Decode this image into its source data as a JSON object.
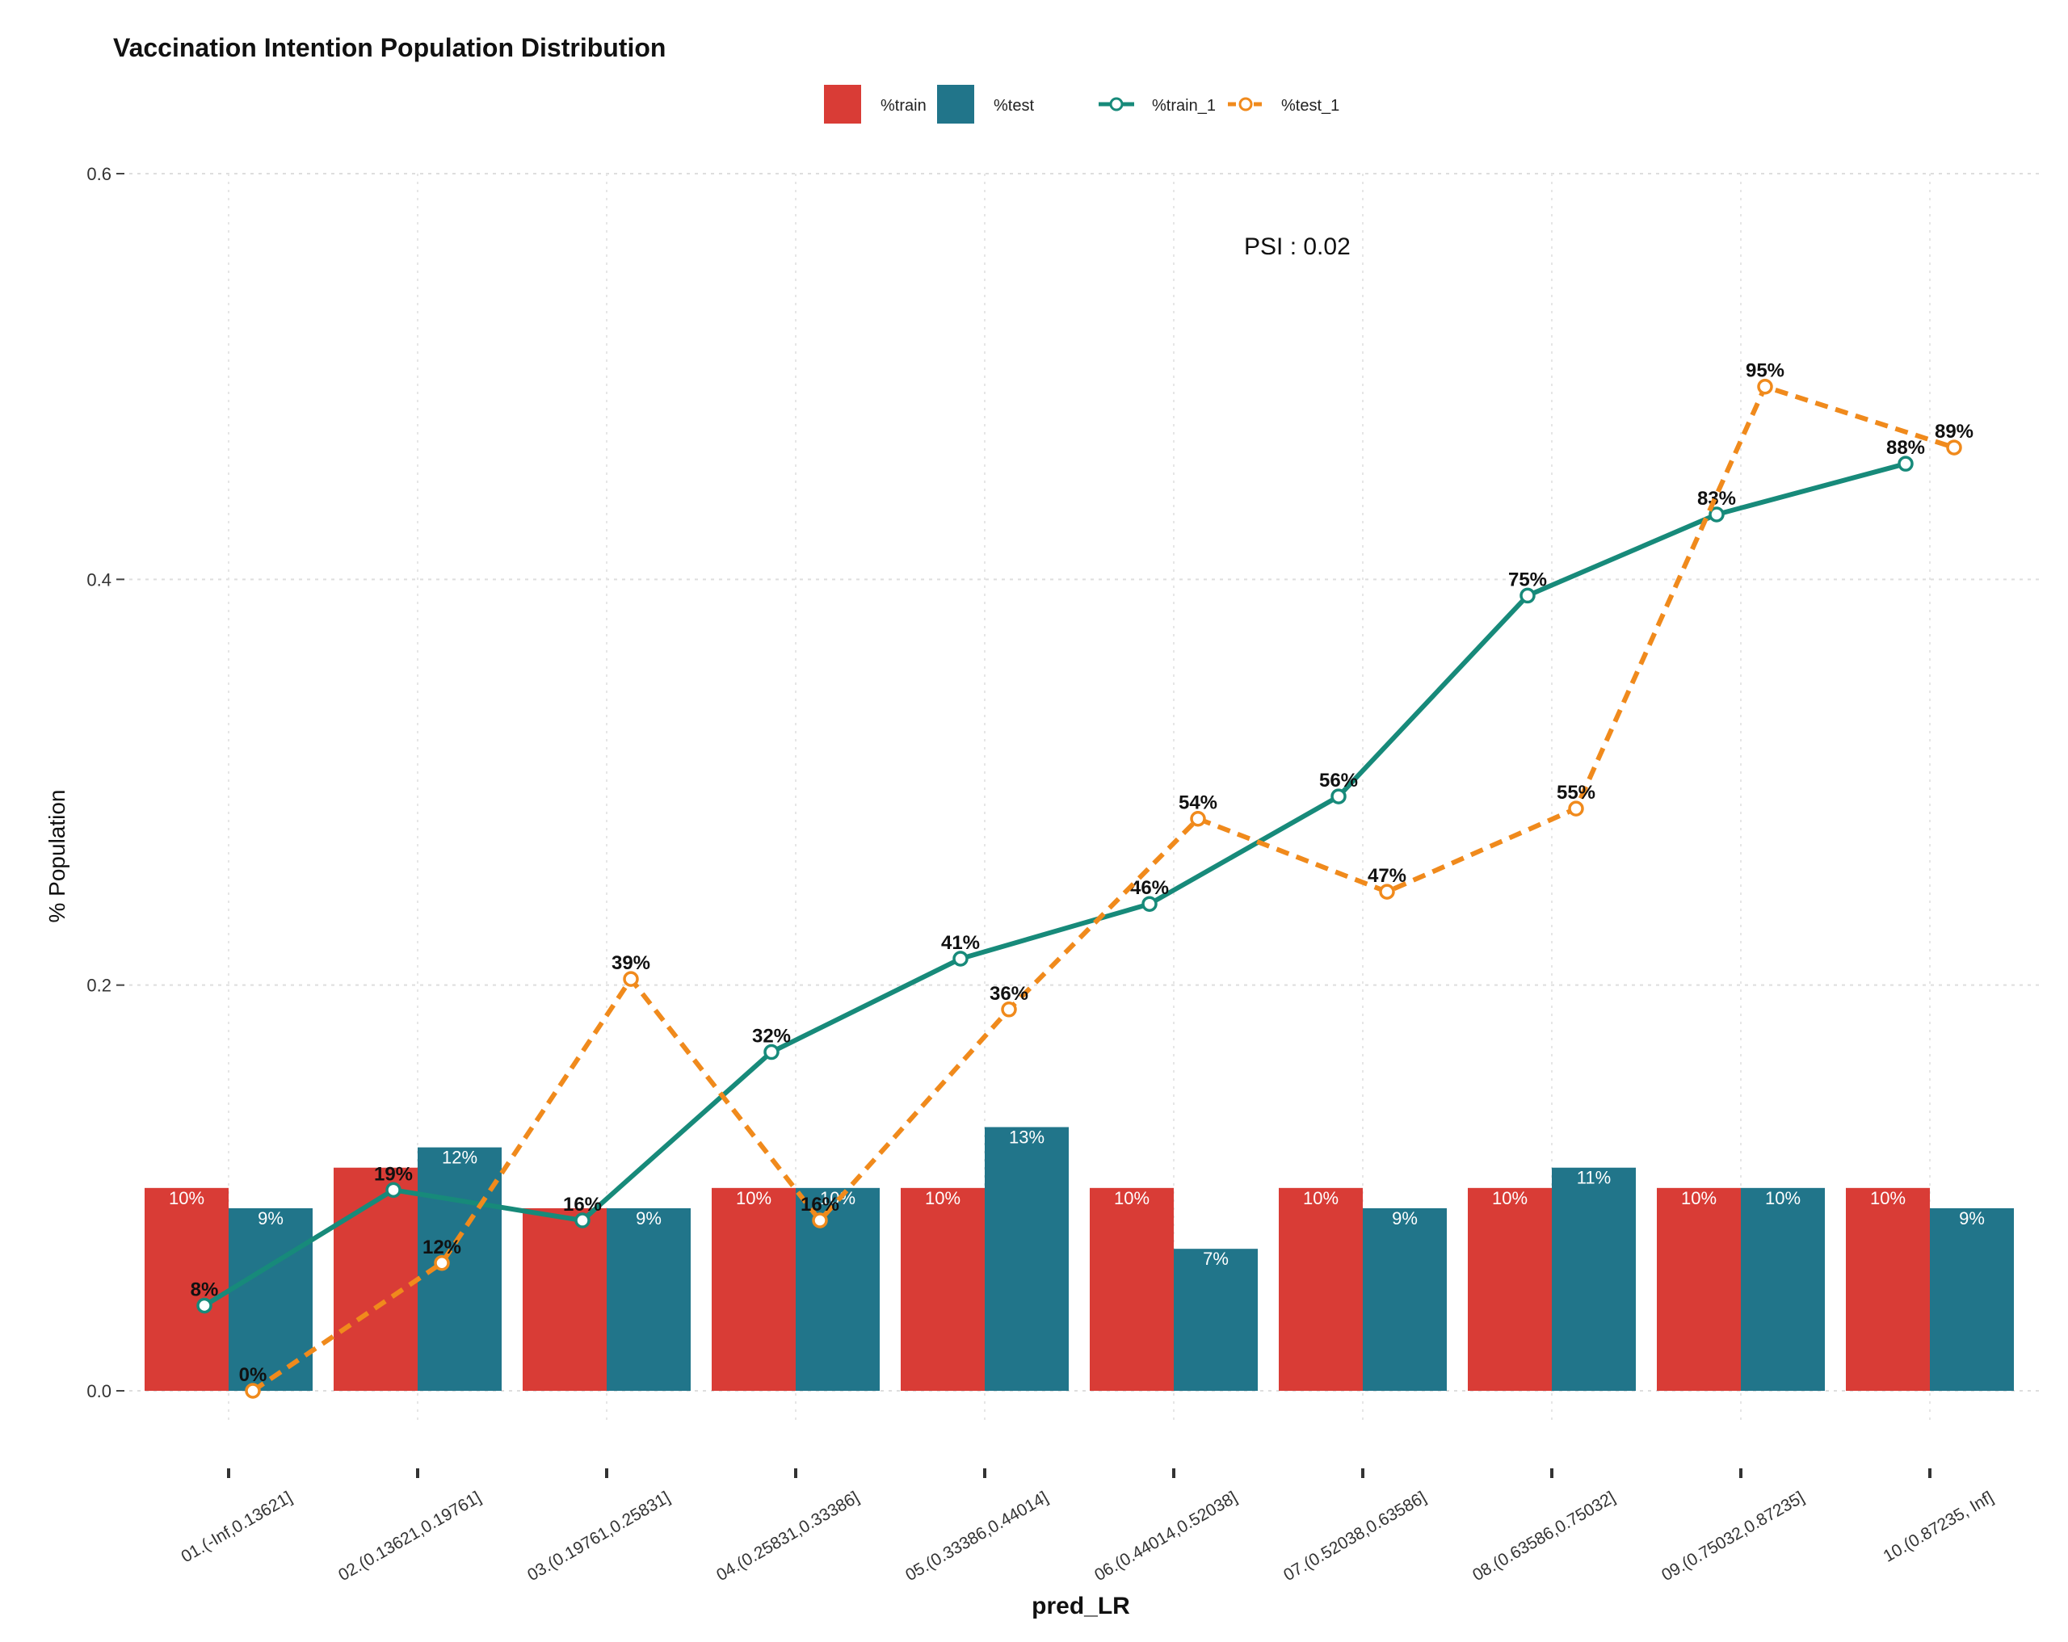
{
  "chart_data": {
    "type": "bar",
    "title": "Vaccination Intention Population Distribution",
    "xlabel": "pred_LR",
    "ylabel": "% Population",
    "ylim": [
      0,
      0.6
    ],
    "yticks": [
      "0.0",
      "0.2",
      "0.4",
      "0.6"
    ],
    "grid": true,
    "legend_position": "top",
    "annotation": "PSI : 0.02",
    "categories": [
      "01.(-Inf,0.13621]",
      "02.(0.13621,0.19761]",
      "03.(0.19761,0.25831]",
      "04.(0.25831,0.33386]",
      "05.(0.33386,0.44014]",
      "06.(0.44014,0.52038]",
      "07.(0.52038,0.63586]",
      "08.(0.63586,0.75032]",
      "09.(0.75032,0.87235]",
      "10.(0.87235, Inf]"
    ],
    "bar_series": [
      {
        "name": "%train",
        "color": "#D93C36",
        "values": [
          0.1,
          0.11,
          0.09,
          0.1,
          0.1,
          0.1,
          0.1,
          0.1,
          0.1,
          0.1
        ],
        "labels": [
          "10%",
          "",
          "",
          "10%",
          "10%",
          "10%",
          "10%",
          "10%",
          "10%",
          "10%"
        ]
      },
      {
        "name": "%test",
        "color": "#21758A",
        "values": [
          0.09,
          0.12,
          0.09,
          0.1,
          0.13,
          0.07,
          0.09,
          0.11,
          0.1,
          0.09
        ],
        "labels": [
          "9%",
          "12%",
          "9%",
          "10%",
          "13%",
          "7%",
          "9%",
          "11%",
          "10%",
          "9%"
        ]
      }
    ],
    "line_series": [
      {
        "name": "%train_1",
        "color": "#178A7A",
        "dash": false,
        "values": [
          0.042,
          0.099,
          0.084,
          0.167,
          0.213,
          0.24,
          0.293,
          0.392,
          0.432,
          0.457
        ],
        "labels": [
          "8%",
          "19%",
          "16%",
          "32%",
          "41%",
          "46%",
          "56%",
          "75%",
          "83%",
          "88%"
        ]
      },
      {
        "name": "%test_1",
        "color": "#F08A1C",
        "dash": true,
        "values": [
          0.0,
          0.063,
          0.203,
          0.084,
          0.188,
          0.282,
          0.246,
          0.287,
          0.495,
          0.465
        ],
        "labels": [
          "0%",
          "12%",
          "39%",
          "16%",
          "36%",
          "54%",
          "47%",
          "55%",
          "95%",
          "89%"
        ]
      }
    ]
  }
}
